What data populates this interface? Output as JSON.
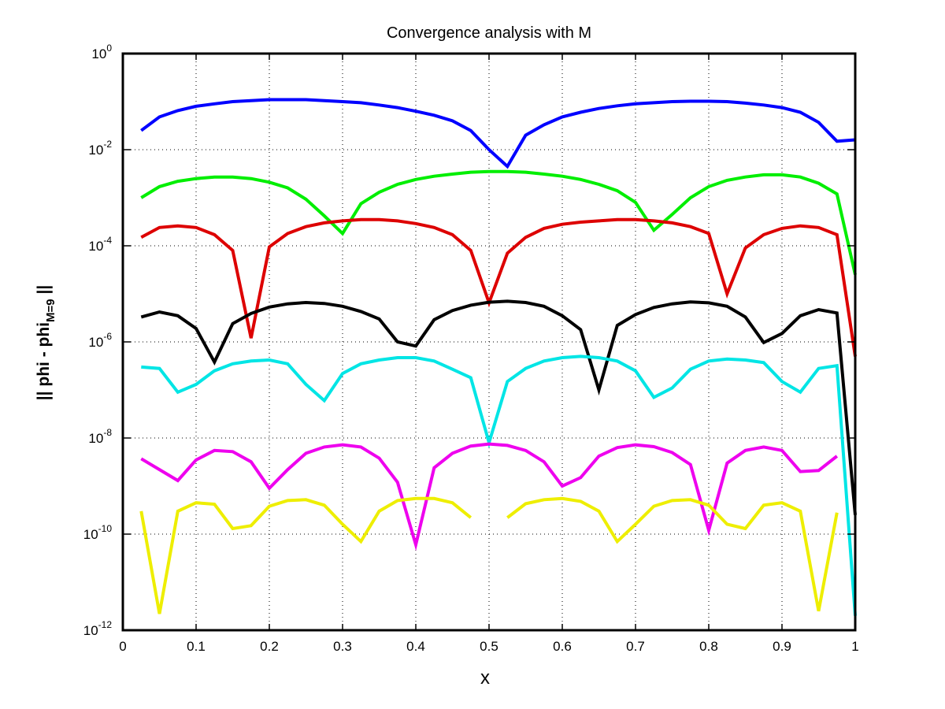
{
  "chart_data": {
    "type": "line",
    "title": "Convergence analysis with M",
    "xlabel": "x",
    "ylabel": {
      "prefix": "|| phi - phi",
      "subscript": "M=9",
      "suffix": " ||"
    },
    "xlim": [
      0,
      1
    ],
    "ylim_log10": [
      -12,
      0
    ],
    "yscale": "log",
    "grid": true,
    "x_ticks": [
      "0",
      "0.1",
      "0.2",
      "0.3",
      "0.4",
      "0.5",
      "0.6",
      "0.7",
      "0.8",
      "0.9",
      "1"
    ],
    "x_tick_values": [
      0,
      0.1,
      0.2,
      0.3,
      0.4,
      0.5,
      0.6,
      0.7,
      0.8,
      0.9,
      1
    ],
    "y_ticks": [
      {
        "base": "10",
        "exp": "0",
        "value": 1
      },
      {
        "base": "10",
        "exp": "-2",
        "value": 0.01
      },
      {
        "base": "10",
        "exp": "-4",
        "value": 0.0001
      },
      {
        "base": "10",
        "exp": "-6",
        "value": 1e-06
      },
      {
        "base": "10",
        "exp": "-8",
        "value": 1e-08
      },
      {
        "base": "10",
        "exp": "-10",
        "value": 1e-10
      },
      {
        "base": "10",
        "exp": "-12",
        "value": 1e-12
      }
    ],
    "series": [
      {
        "color": "#0000ff",
        "points": [
          [
            0.025,
            0.025
          ],
          [
            0.05,
            0.048
          ],
          [
            0.075,
            0.065
          ],
          [
            0.1,
            0.08
          ],
          [
            0.125,
            0.09
          ],
          [
            0.15,
            0.1
          ],
          [
            0.175,
            0.105
          ],
          [
            0.2,
            0.11
          ],
          [
            0.225,
            0.11
          ],
          [
            0.25,
            0.11
          ],
          [
            0.275,
            0.105
          ],
          [
            0.3,
            0.1
          ],
          [
            0.325,
            0.095
          ],
          [
            0.35,
            0.085
          ],
          [
            0.375,
            0.075
          ],
          [
            0.4,
            0.063
          ],
          [
            0.425,
            0.052
          ],
          [
            0.45,
            0.04
          ],
          [
            0.475,
            0.025
          ],
          [
            0.5,
            0.01
          ],
          [
            0.525,
            0.0045
          ],
          [
            0.55,
            0.02
          ],
          [
            0.575,
            0.033
          ],
          [
            0.6,
            0.048
          ],
          [
            0.625,
            0.06
          ],
          [
            0.65,
            0.072
          ],
          [
            0.675,
            0.082
          ],
          [
            0.7,
            0.09
          ],
          [
            0.725,
            0.095
          ],
          [
            0.75,
            0.1
          ],
          [
            0.775,
            0.102
          ],
          [
            0.8,
            0.102
          ],
          [
            0.825,
            0.1
          ],
          [
            0.85,
            0.093
          ],
          [
            0.875,
            0.085
          ],
          [
            0.9,
            0.075
          ],
          [
            0.925,
            0.06
          ],
          [
            0.95,
            0.037
          ],
          [
            0.975,
            0.015
          ],
          [
            1.0,
            0.016
          ]
        ]
      },
      {
        "color": "#00ee00",
        "points": [
          [
            0.025,
            0.001
          ],
          [
            0.05,
            0.0017
          ],
          [
            0.075,
            0.0022
          ],
          [
            0.1,
            0.0025
          ],
          [
            0.125,
            0.0027
          ],
          [
            0.15,
            0.0027
          ],
          [
            0.175,
            0.0025
          ],
          [
            0.2,
            0.0021
          ],
          [
            0.225,
            0.0016
          ],
          [
            0.25,
            0.00093
          ],
          [
            0.275,
            0.00042
          ],
          [
            0.3,
            0.00018
          ],
          [
            0.325,
            0.00075
          ],
          [
            0.35,
            0.0013
          ],
          [
            0.375,
            0.0019
          ],
          [
            0.4,
            0.0024
          ],
          [
            0.425,
            0.0028
          ],
          [
            0.45,
            0.0031
          ],
          [
            0.475,
            0.0034
          ],
          [
            0.5,
            0.0035
          ],
          [
            0.525,
            0.0035
          ],
          [
            0.55,
            0.0034
          ],
          [
            0.575,
            0.0031
          ],
          [
            0.6,
            0.0028
          ],
          [
            0.625,
            0.0024
          ],
          [
            0.65,
            0.0019
          ],
          [
            0.675,
            0.0014
          ],
          [
            0.7,
            0.0008
          ],
          [
            0.725,
            0.00021
          ],
          [
            0.75,
            0.00045
          ],
          [
            0.775,
            0.001
          ],
          [
            0.8,
            0.0017
          ],
          [
            0.825,
            0.0023
          ],
          [
            0.85,
            0.0027
          ],
          [
            0.875,
            0.003
          ],
          [
            0.9,
            0.003
          ],
          [
            0.925,
            0.0027
          ],
          [
            0.95,
            0.002
          ],
          [
            0.975,
            0.0012
          ],
          [
            1.0,
            2.5e-05
          ]
        ]
      },
      {
        "color": "#dd0000",
        "points": [
          [
            0.025,
            0.00015
          ],
          [
            0.05,
            0.00024
          ],
          [
            0.075,
            0.00026
          ],
          [
            0.1,
            0.00024
          ],
          [
            0.125,
            0.00017
          ],
          [
            0.15,
            8e-05
          ],
          [
            0.175,
            1.2e-06
          ],
          [
            0.2,
            9.5e-05
          ],
          [
            0.225,
            0.00018
          ],
          [
            0.25,
            0.00025
          ],
          [
            0.275,
            0.0003
          ],
          [
            0.3,
            0.00033
          ],
          [
            0.325,
            0.00035
          ],
          [
            0.35,
            0.00035
          ],
          [
            0.375,
            0.00033
          ],
          [
            0.4,
            0.00029
          ],
          [
            0.425,
            0.00024
          ],
          [
            0.45,
            0.00017
          ],
          [
            0.475,
            8e-05
          ],
          [
            0.5,
            6.5e-06
          ],
          [
            0.525,
            7e-05
          ],
          [
            0.55,
            0.00015
          ],
          [
            0.575,
            0.00023
          ],
          [
            0.6,
            0.00028
          ],
          [
            0.625,
            0.00031
          ],
          [
            0.65,
            0.00033
          ],
          [
            0.675,
            0.00035
          ],
          [
            0.7,
            0.00035
          ],
          [
            0.725,
            0.00033
          ],
          [
            0.75,
            0.0003
          ],
          [
            0.775,
            0.00025
          ],
          [
            0.8,
            0.00018
          ],
          [
            0.825,
            1e-05
          ],
          [
            0.85,
            9e-05
          ],
          [
            0.875,
            0.00017
          ],
          [
            0.9,
            0.00023
          ],
          [
            0.925,
            0.00026
          ],
          [
            0.95,
            0.00024
          ],
          [
            0.975,
            0.00017
          ],
          [
            1.0,
            5e-07
          ]
        ]
      },
      {
        "color": "#000000",
        "points": [
          [
            0.025,
            3.3e-06
          ],
          [
            0.05,
            4.2e-06
          ],
          [
            0.075,
            3.5e-06
          ],
          [
            0.1,
            1.9e-06
          ],
          [
            0.125,
            3.8e-07
          ],
          [
            0.15,
            2.4e-06
          ],
          [
            0.175,
            3.9e-06
          ],
          [
            0.2,
            5.3e-06
          ],
          [
            0.225,
            6.2e-06
          ],
          [
            0.25,
            6.6e-06
          ],
          [
            0.275,
            6.3e-06
          ],
          [
            0.3,
            5.5e-06
          ],
          [
            0.325,
            4.3e-06
          ],
          [
            0.35,
            3e-06
          ],
          [
            0.375,
            1e-06
          ],
          [
            0.4,
            8.2e-07
          ],
          [
            0.425,
            2.9e-06
          ],
          [
            0.45,
            4.5e-06
          ],
          [
            0.475,
            5.8e-06
          ],
          [
            0.5,
            6.7e-06
          ],
          [
            0.525,
            7e-06
          ],
          [
            0.55,
            6.6e-06
          ],
          [
            0.575,
            5.5e-06
          ],
          [
            0.6,
            3.5e-06
          ],
          [
            0.625,
            1.8e-06
          ],
          [
            0.65,
            1e-07
          ],
          [
            0.675,
            2.2e-06
          ],
          [
            0.7,
            3.7e-06
          ],
          [
            0.725,
            5.2e-06
          ],
          [
            0.75,
            6.2e-06
          ],
          [
            0.775,
            6.8e-06
          ],
          [
            0.8,
            6.5e-06
          ],
          [
            0.825,
            5.5e-06
          ],
          [
            0.85,
            3.3e-06
          ],
          [
            0.875,
            9.7e-07
          ],
          [
            0.9,
            1.5e-06
          ],
          [
            0.925,
            3.5e-06
          ],
          [
            0.95,
            4.7e-06
          ],
          [
            0.975,
            4e-06
          ],
          [
            1.0,
            2.5e-10
          ]
        ]
      },
      {
        "color": "#00e5e5",
        "points": [
          [
            0.025,
            3e-07
          ],
          [
            0.05,
            2.8e-07
          ],
          [
            0.075,
            9e-08
          ],
          [
            0.1,
            1.3e-07
          ],
          [
            0.125,
            2.5e-07
          ],
          [
            0.15,
            3.5e-07
          ],
          [
            0.175,
            4e-07
          ],
          [
            0.2,
            4.2e-07
          ],
          [
            0.225,
            3.5e-07
          ],
          [
            0.25,
            1.3e-07
          ],
          [
            0.275,
            6e-08
          ],
          [
            0.3,
            2.2e-07
          ],
          [
            0.325,
            3.5e-07
          ],
          [
            0.35,
            4.2e-07
          ],
          [
            0.375,
            4.7e-07
          ],
          [
            0.4,
            4.7e-07
          ],
          [
            0.425,
            4e-07
          ],
          [
            0.45,
            2.7e-07
          ],
          [
            0.475,
            1.8e-07
          ],
          [
            0.5,
            8e-09
          ],
          [
            0.525,
            1.5e-07
          ],
          [
            0.55,
            2.8e-07
          ],
          [
            0.575,
            4e-07
          ],
          [
            0.6,
            4.7e-07
          ],
          [
            0.625,
            5e-07
          ],
          [
            0.65,
            4.7e-07
          ],
          [
            0.675,
            4e-07
          ],
          [
            0.7,
            2.5e-07
          ],
          [
            0.725,
            7e-08
          ],
          [
            0.75,
            1.1e-07
          ],
          [
            0.775,
            2.7e-07
          ],
          [
            0.8,
            4e-07
          ],
          [
            0.825,
            4.4e-07
          ],
          [
            0.85,
            4.2e-07
          ],
          [
            0.875,
            3.7e-07
          ],
          [
            0.9,
            1.5e-07
          ],
          [
            0.925,
            9e-08
          ],
          [
            0.95,
            2.8e-07
          ],
          [
            0.975,
            3.2e-07
          ],
          [
            1.0,
            2e-12
          ]
        ]
      },
      {
        "color": "#ee00ee",
        "points": [
          [
            0.025,
            3.7e-09
          ],
          [
            0.05,
            2.2e-09
          ],
          [
            0.075,
            1.3e-09
          ],
          [
            0.1,
            3.5e-09
          ],
          [
            0.125,
            5.5e-09
          ],
          [
            0.15,
            5.2e-09
          ],
          [
            0.175,
            3.2e-09
          ],
          [
            0.2,
            9e-10
          ],
          [
            0.225,
            2.2e-09
          ],
          [
            0.25,
            4.8e-09
          ],
          [
            0.275,
            6.5e-09
          ],
          [
            0.3,
            7.2e-09
          ],
          [
            0.325,
            6.5e-09
          ],
          [
            0.35,
            3.8e-09
          ],
          [
            0.375,
            1.2e-09
          ],
          [
            0.4,
            6e-11
          ],
          [
            0.425,
            2.4e-09
          ],
          [
            0.45,
            4.8e-09
          ],
          [
            0.475,
            6.8e-09
          ],
          [
            0.5,
            7.5e-09
          ],
          [
            0.525,
            7e-09
          ],
          [
            0.55,
            5.5e-09
          ],
          [
            0.575,
            3.2e-09
          ],
          [
            0.6,
            1e-09
          ],
          [
            0.625,
            1.5e-09
          ],
          [
            0.65,
            4.2e-09
          ],
          [
            0.675,
            6.3e-09
          ],
          [
            0.7,
            7.2e-09
          ],
          [
            0.725,
            6.6e-09
          ],
          [
            0.75,
            5e-09
          ],
          [
            0.775,
            2.8e-09
          ],
          [
            0.8,
            1.2e-10
          ],
          [
            0.825,
            3e-09
          ],
          [
            0.85,
            5.5e-09
          ],
          [
            0.875,
            6.5e-09
          ],
          [
            0.9,
            5.5e-09
          ],
          [
            0.925,
            2e-09
          ],
          [
            0.95,
            2.1e-09
          ],
          [
            0.975,
            4.2e-09
          ]
        ]
      },
      {
        "color": "#eeee00",
        "segments": [
          [
            [
              0.025,
              3e-10
            ],
            [
              0.05,
              2.2e-12
            ],
            [
              0.075,
              3e-10
            ],
            [
              0.1,
              4.5e-10
            ],
            [
              0.125,
              4.2e-10
            ],
            [
              0.15,
              1.3e-10
            ],
            [
              0.175,
              1.5e-10
            ],
            [
              0.2,
              3.8e-10
            ],
            [
              0.225,
              5e-10
            ],
            [
              0.25,
              5.2e-10
            ],
            [
              0.275,
              4e-10
            ],
            [
              0.3,
              1.6e-10
            ],
            [
              0.325,
              7e-11
            ],
            [
              0.35,
              3e-10
            ],
            [
              0.375,
              5e-10
            ],
            [
              0.4,
              5.5e-10
            ],
            [
              0.425,
              5.5e-10
            ],
            [
              0.45,
              4.5e-10
            ],
            [
              0.475,
              2.2e-10
            ]
          ],
          [
            [
              0.525,
              2.2e-10
            ],
            [
              0.55,
              4.3e-10
            ],
            [
              0.575,
              5.2e-10
            ],
            [
              0.6,
              5.5e-10
            ],
            [
              0.625,
              4.8e-10
            ],
            [
              0.65,
              3e-10
            ],
            [
              0.675,
              7e-11
            ],
            [
              0.7,
              1.6e-10
            ],
            [
              0.725,
              3.8e-10
            ],
            [
              0.75,
              5e-10
            ],
            [
              0.775,
              5.2e-10
            ],
            [
              0.8,
              4e-10
            ],
            [
              0.825,
              1.6e-10
            ],
            [
              0.85,
              1.3e-10
            ],
            [
              0.875,
              4e-10
            ],
            [
              0.9,
              4.5e-10
            ],
            [
              0.925,
              3e-10
            ],
            [
              0.95,
              2.5e-12
            ],
            [
              0.975,
              2.8e-10
            ]
          ]
        ]
      }
    ]
  }
}
